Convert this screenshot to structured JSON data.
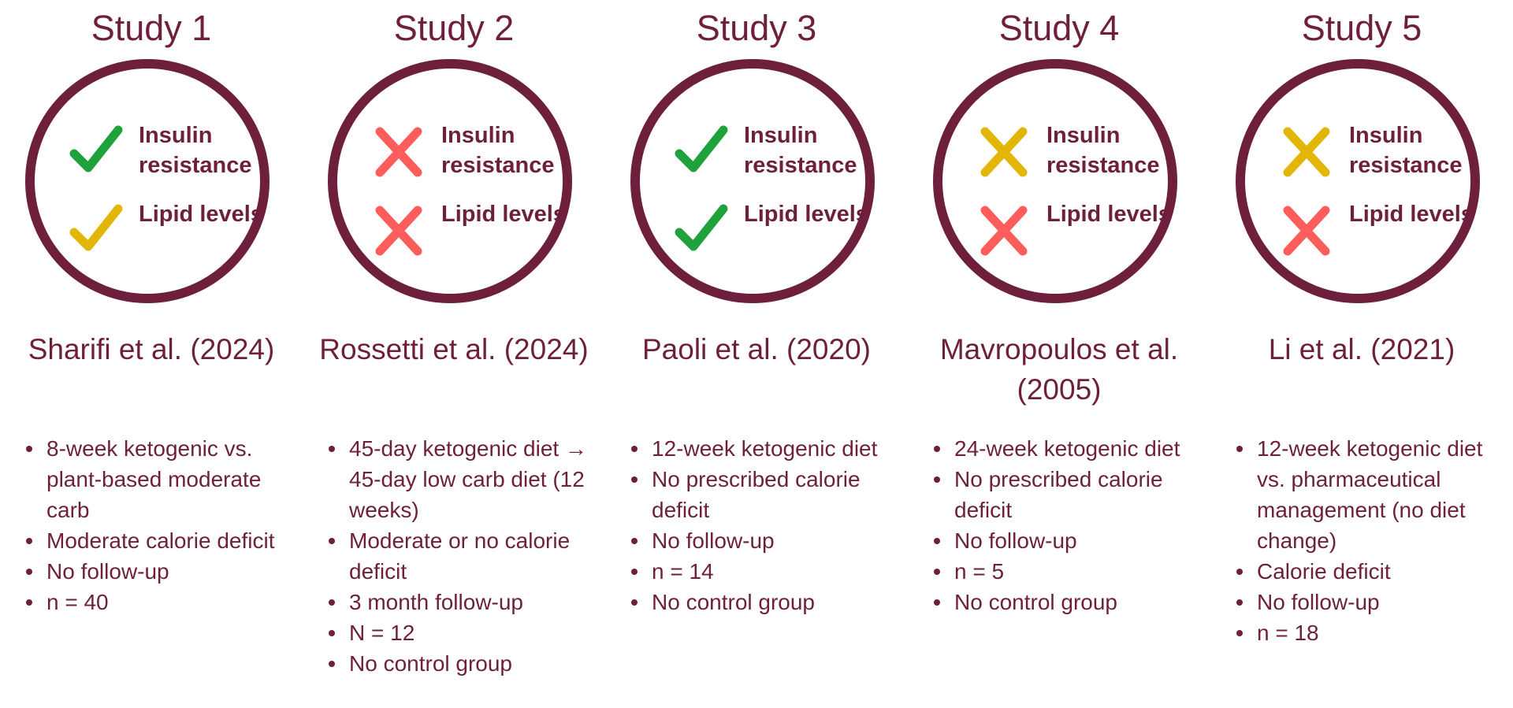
{
  "colors": {
    "primary": "#6e1f3c",
    "check_green": "#1fa23b",
    "check_yellow": "#e3b505",
    "cross_red": "#ff5c5c",
    "cross_yellow": "#e3b505"
  },
  "studies": [
    {
      "title": "Study 1",
      "outcomes": [
        {
          "label": "Insulin resistance",
          "result": "check",
          "color": "#1fa23b"
        },
        {
          "label": "Lipid levels",
          "result": "check",
          "color": "#e3b505"
        }
      ],
      "citation": "Sharifi et al. (2024)",
      "details": [
        "8-week ketogenic vs. plant-based moderate carb",
        "Moderate calorie deficit",
        "No follow-up",
        "n = 40"
      ]
    },
    {
      "title": "Study 2",
      "outcomes": [
        {
          "label": "Insulin resistance",
          "result": "cross",
          "color": "#ff5c5c"
        },
        {
          "label": "Lipid levels",
          "result": "cross",
          "color": "#ff5c5c"
        }
      ],
      "citation": "Rossetti et al. (2024)",
      "details": [
        "45-day ketogenic diet → 45-day low carb diet (12 weeks)",
        "Moderate or no calorie deficit",
        "3 month follow-up",
        "N = 12",
        "No control group"
      ]
    },
    {
      "title": "Study 3",
      "outcomes": [
        {
          "label": "Insulin resistance",
          "result": "check",
          "color": "#1fa23b"
        },
        {
          "label": "Lipid levels",
          "result": "check",
          "color": "#1fa23b"
        }
      ],
      "citation": "Paoli et al. (2020)",
      "details": [
        "12-week ketogenic diet",
        "No prescribed calorie deficit",
        "No follow-up",
        "n = 14",
        "No control group"
      ]
    },
    {
      "title": "Study 4",
      "outcomes": [
        {
          "label": "Insulin resistance",
          "result": "cross",
          "color": "#e3b505"
        },
        {
          "label": "Lipid levels",
          "result": "cross",
          "color": "#ff5c5c"
        }
      ],
      "citation": "Mavropoulos et al. (2005)",
      "details": [
        "24-week ketogenic diet",
        "No prescribed calorie deficit",
        "No follow-up",
        "n = 5",
        "No control group"
      ]
    },
    {
      "title": "Study 5",
      "outcomes": [
        {
          "label": "Insulin resistance",
          "result": "cross",
          "color": "#e3b505"
        },
        {
          "label": "Lipid levels",
          "result": "cross",
          "color": "#ff5c5c"
        }
      ],
      "citation": "Li et al. (2021)",
      "details": [
        "12-week ketogenic diet vs. pharmaceutical management (no diet change)",
        "Calorie deficit",
        "No follow-up",
        "n = 18"
      ]
    }
  ]
}
